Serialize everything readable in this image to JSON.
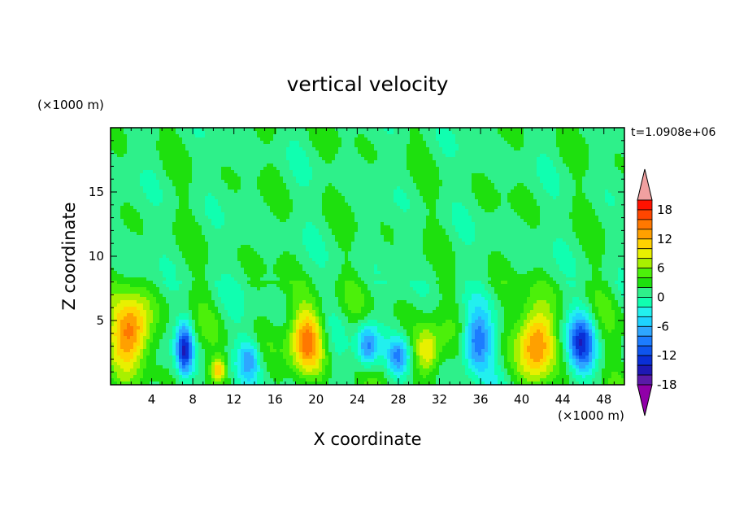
{
  "chart_data": {
    "type": "heatmap",
    "title": "vertical velocity",
    "time_label": "t=1.0908e+06",
    "xlabel": "X coordinate",
    "ylabel": "Z coordinate",
    "x_unit": "(×1000 m)",
    "y_unit": "(×1000 m)",
    "xlim": [
      0,
      50
    ],
    "ylim": [
      0,
      20
    ],
    "x_ticks": [
      4,
      8,
      12,
      16,
      20,
      24,
      28,
      32,
      36,
      40,
      44,
      48
    ],
    "y_ticks": [
      5,
      10,
      15
    ],
    "colorbar": {
      "min": -21,
      "max": 21,
      "step": 2,
      "tick_values": [
        18,
        12,
        6,
        0,
        -6,
        -12,
        -18
      ],
      "tick_labels": [
        "18",
        "12",
        "6",
        "0",
        "-6",
        "-12",
        "-18"
      ],
      "colors": [
        "#9000a8",
        "#5a1aa8",
        "#1e18b4",
        "#0a2fd6",
        "#0e55ee",
        "#1c7cff",
        "#2ea6ff",
        "#1ed2ff",
        "#22f0ee",
        "#10ffb0",
        "#2ef08a",
        "#1ee00e",
        "#4cf00a",
        "#a8f000",
        "#e8f000",
        "#ffd200",
        "#ffa000",
        "#ff7800",
        "#ff4600",
        "#ff1200",
        "#f0a0a0"
      ]
    },
    "field_features": [
      {
        "x": 2.0,
        "z": 4.2,
        "amp": 14,
        "sx": 1.9,
        "sz": 2.6
      },
      {
        "x": 7.2,
        "z": 2.8,
        "amp": -14,
        "sx": 0.8,
        "sz": 2.0
      },
      {
        "x": 10.5,
        "z": 1.2,
        "amp": 9,
        "sx": 0.7,
        "sz": 0.9
      },
      {
        "x": 13.5,
        "z": 2.0,
        "amp": -7,
        "sx": 1.0,
        "sz": 1.5
      },
      {
        "x": 19.2,
        "z": 3.6,
        "amp": 13,
        "sx": 1.6,
        "sz": 2.6
      },
      {
        "x": 25.0,
        "z": 3.0,
        "amp": -11,
        "sx": 1.1,
        "sz": 1.8
      },
      {
        "x": 28.0,
        "z": 2.2,
        "amp": -8,
        "sx": 1.0,
        "sz": 1.4
      },
      {
        "x": 30.8,
        "z": 2.6,
        "amp": 9,
        "sx": 1.3,
        "sz": 1.8
      },
      {
        "x": 35.6,
        "z": 3.2,
        "amp": -11,
        "sx": 1.4,
        "sz": 2.2
      },
      {
        "x": 41.6,
        "z": 3.4,
        "amp": 13,
        "sx": 1.7,
        "sz": 2.8
      },
      {
        "x": 45.8,
        "z": 3.2,
        "amp": -13,
        "sx": 1.3,
        "sz": 2.3
      }
    ]
  },
  "colors": {
    "background": "#ffffff",
    "frame": "#000000"
  }
}
